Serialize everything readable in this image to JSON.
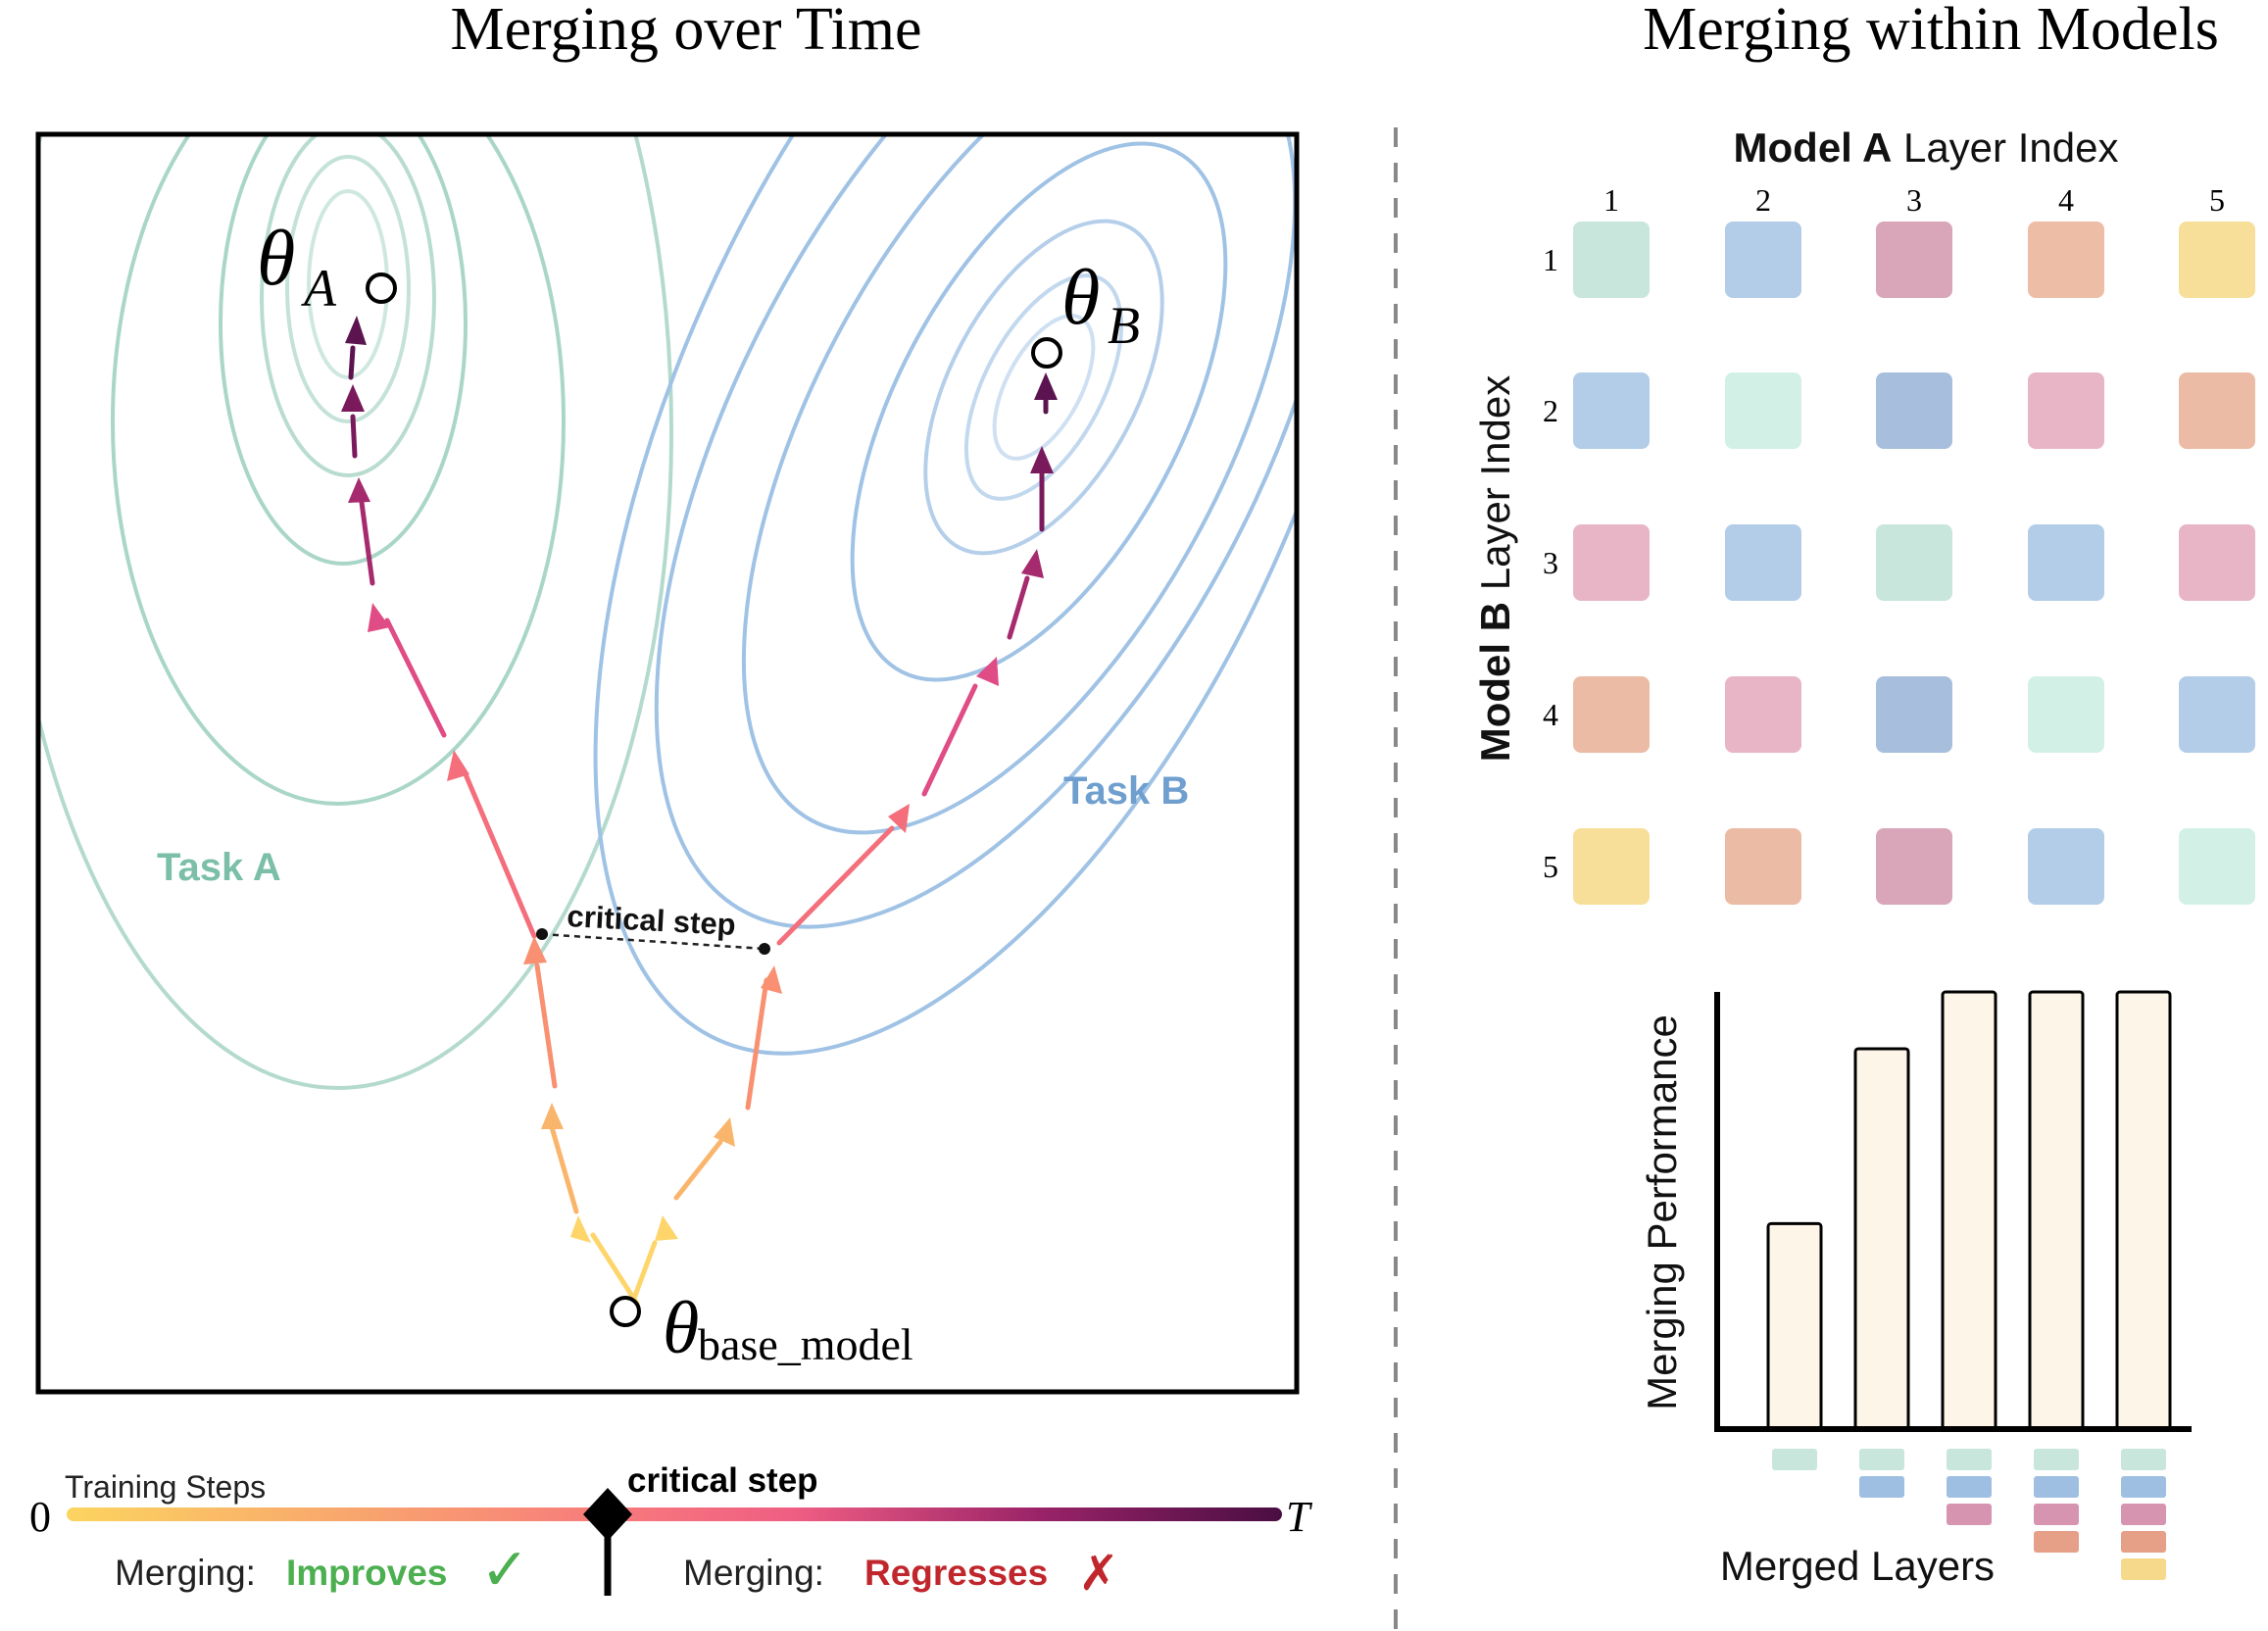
{
  "left_panel": {
    "title": "Merging over Time",
    "task_a_label": "Task A",
    "task_b_label": "Task B",
    "theta_symbol": "θ",
    "theta_a_sub": "A",
    "theta_b_sub": "B",
    "theta_base_sub": "base_model",
    "critical_step_label": "critical step",
    "colors": {
      "task_a": "#a9d6c8",
      "task_b": "#9fc2e5",
      "task_a_text": "#7cbfa9",
      "task_b_text": "#6f9fcf"
    }
  },
  "timeline": {
    "axis_title": "Training Steps",
    "start_label": "0",
    "end_label": "T",
    "critical_step_label": "critical step",
    "merging_prefix_left": "Merging:",
    "improves_label": "Improves",
    "merging_prefix_right": "Merging:",
    "regresses_label": "Regresses",
    "check_icon": "✓",
    "cross_icon": "✗",
    "colors": {
      "improves": "#4caf50",
      "regresses": "#c0272d"
    }
  },
  "right_panel": {
    "title": "Merging within Models",
    "col_axis_bold": "Model A",
    "col_axis_rest": " Layer Index",
    "row_axis_bold": "Model B",
    "row_axis_rest": " Layer Index",
    "col_indices": [
      "1",
      "2",
      "3",
      "4",
      "5"
    ],
    "row_indices": [
      "1",
      "2",
      "3",
      "4",
      "5"
    ],
    "grid_colors": [
      [
        "#c8e6dc",
        "#b3cde9",
        "#d9a5b8",
        "#edbda6",
        "#f7df9a"
      ],
      [
        "#b3cde9",
        "#d3f0e6",
        "#a7bfdc",
        "#e8b5c6",
        "#ecbba5"
      ],
      [
        "#e8b5c6",
        "#b3cde9",
        "#c8e6dc",
        "#b3cde9",
        "#e8b5c6"
      ],
      [
        "#ecbba5",
        "#e8b5c6",
        "#a7bfdc",
        "#d3f0e6",
        "#b3cde9"
      ],
      [
        "#f7df9a",
        "#ecbba5",
        "#d9a5b8",
        "#b3cde9",
        "#d3f0e6"
      ]
    ]
  },
  "chart_data": {
    "type": "bar",
    "ylabel": "Merging Performance",
    "xlabel": "Merged Layers",
    "categories": [
      "1",
      "1-2",
      "1-3",
      "1-4",
      "1-5"
    ],
    "values": [
      0.47,
      0.87,
      1.0,
      1.0,
      1.0
    ],
    "ylim": [
      0,
      1
    ],
    "bar_color": "#fdf6e8",
    "layer_swatches": [
      "#c8e6dc",
      "#9fbfe2",
      "#d694b0",
      "#e6a088",
      "#f6d98a"
    ]
  }
}
